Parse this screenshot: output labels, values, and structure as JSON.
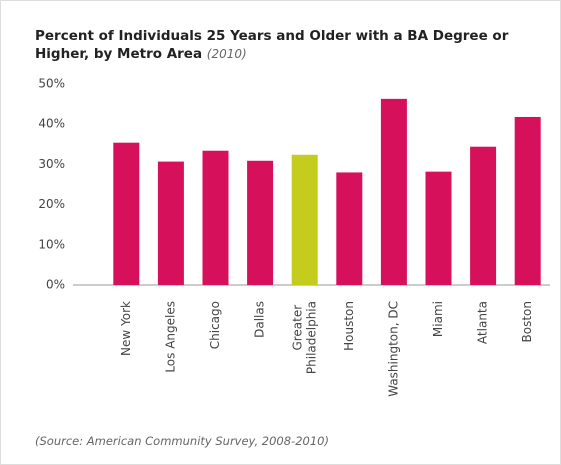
{
  "chart_data": {
    "type": "bar",
    "title": "Percent of Individuals 25 Years and Older with a BA Degree or Higher, by Metro Area",
    "title_note": "(2010)",
    "source": "(Source: American Community Survey, 2008-2010)",
    "categories": [
      "New York",
      "Los Angeles",
      "Chicago",
      "Dallas",
      "Greater Philadelphia",
      "Houston",
      "Washington, DC",
      "Miami",
      "Atlanta",
      "Boston"
    ],
    "values": [
      35.4,
      30.7,
      33.4,
      30.9,
      32.4,
      28.0,
      46.3,
      28.2,
      34.4,
      41.8
    ],
    "colors": [
      "#d6105a",
      "#d6105a",
      "#d6105a",
      "#d6105a",
      "#c4cc1e",
      "#d6105a",
      "#d6105a",
      "#d6105a",
      "#d6105a",
      "#d6105a"
    ],
    "ylim": [
      0,
      50
    ],
    "yticks": [
      {
        "value": 0,
        "label": "0%"
      },
      {
        "value": 10,
        "label": "10%"
      },
      {
        "value": 20,
        "label": "20%"
      },
      {
        "value": 30,
        "label": "30%"
      },
      {
        "value": 40,
        "label": "40%"
      },
      {
        "value": 50,
        "label": "50%"
      }
    ],
    "grid": false
  }
}
